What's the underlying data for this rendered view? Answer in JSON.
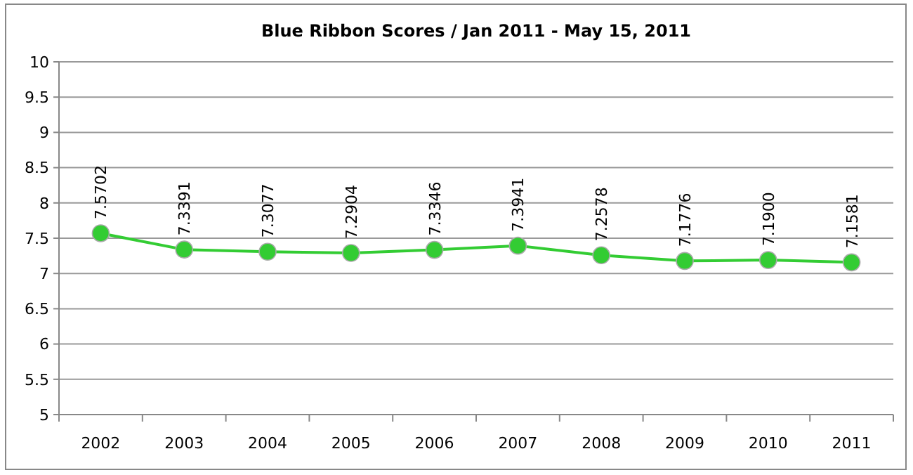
{
  "chart_data": {
    "type": "line",
    "title": "Blue Ribbon Scores / Jan 2011  - May 15, 2011",
    "categories": [
      "2002",
      "2003",
      "2004",
      "2005",
      "2006",
      "2007",
      "2008",
      "2009",
      "2010",
      "2011"
    ],
    "values": [
      7.5702,
      7.3391,
      7.3077,
      7.2904,
      7.3346,
      7.3941,
      7.2578,
      7.1776,
      7.19,
      7.1581
    ],
    "value_labels": [
      "7.5702",
      "7.3391",
      "7.3077",
      "7.2904",
      "7.3346",
      "7.3941",
      "7.2578",
      "7.1776",
      "7.1900",
      "7.1581"
    ],
    "color": "#33cc33",
    "marker": "circle",
    "grid": "y",
    "ylim": [
      5,
      10
    ],
    "yticks": [
      5,
      5.5,
      6,
      6.5,
      7,
      7.5,
      8,
      8.5,
      9,
      9.5,
      10
    ]
  }
}
